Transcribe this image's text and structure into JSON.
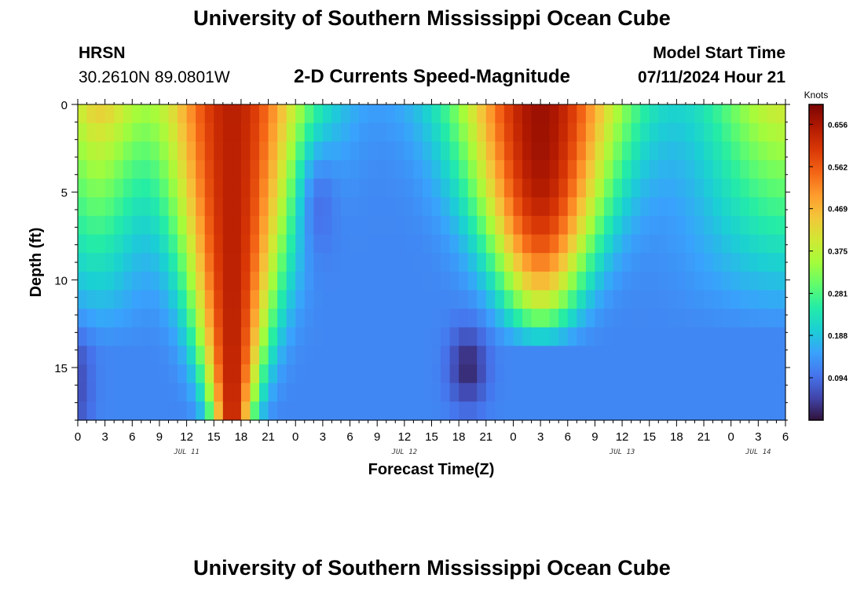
{
  "header": {
    "title": "University of Southern Mississippi Ocean Cube",
    "station": "HRSN",
    "coords": "30.2610N  89.0801W",
    "plot_title": "2-D Currents Speed-Magnitude",
    "model_start_label": "Model Start Time",
    "model_start_value": "07/11/2024 Hour 21"
  },
  "footer": {
    "title": "University of Southern Mississippi Ocean Cube"
  },
  "chart_data": {
    "type": "heatmap",
    "title": "2-D Currents Speed-Magnitude",
    "xlabel": "Forecast Time(Z)",
    "ylabel": "Depth (ft)",
    "x_tick_labels": [
      "0",
      "3",
      "6",
      "9",
      "12",
      "15",
      "18",
      "21",
      "0",
      "3",
      "6",
      "9",
      "12",
      "15",
      "18",
      "21",
      "0",
      "3",
      "6",
      "9",
      "12",
      "15",
      "18",
      "21",
      "0",
      "3",
      "6"
    ],
    "date_labels": [
      {
        "label": "JUL 11",
        "hour": 12
      },
      {
        "label": "JUL 12",
        "hour": 36
      },
      {
        "label": "JUL 13",
        "hour": 60
      },
      {
        "label": "JUL 14",
        "hour": 75
      }
    ],
    "xlim_hours": [
      0,
      78
    ],
    "y_ticks": [
      "0",
      "5",
      "10",
      "15"
    ],
    "ylim_ft": [
      0,
      18
    ],
    "colorbar": {
      "unit": "Knots",
      "range": [
        0.0,
        0.7
      ],
      "tick_labels": [
        "0.094",
        "0.188",
        "0.281",
        "0.375",
        "0.469",
        "0.562",
        "0.656"
      ],
      "colors": [
        "#30123b",
        "#4145ab",
        "#4675ed",
        "#39a2fc",
        "#1bcfd4",
        "#24eca6",
        "#61fc6c",
        "#a4fc3b",
        "#d1e834",
        "#f3c63a",
        "#fe9b2d",
        "#f36315",
        "#d93806",
        "#b11901",
        "#7a0403"
      ]
    },
    "grid": false,
    "legend": "right"
  }
}
